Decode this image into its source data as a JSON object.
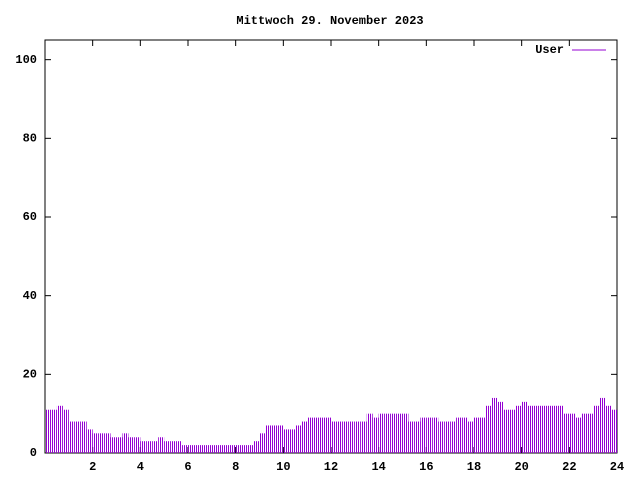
{
  "chart_data": {
    "type": "impulses",
    "title": "Mittwoch 29. November 2023",
    "x": [
      0,
      0.25,
      0.5,
      0.75,
      1,
      1.25,
      1.5,
      1.75,
      2,
      2.25,
      2.5,
      2.75,
      3,
      3.25,
      3.5,
      3.75,
      4,
      4.25,
      4.5,
      4.75,
      5,
      5.25,
      5.5,
      5.75,
      6,
      6.25,
      6.5,
      6.75,
      7,
      7.25,
      7.5,
      7.75,
      8,
      8.25,
      8.5,
      8.75,
      9,
      9.25,
      9.5,
      9.75,
      10,
      10.25,
      10.5,
      10.75,
      11,
      11.25,
      11.5,
      11.75,
      12,
      12.25,
      12.5,
      12.75,
      13,
      13.25,
      13.5,
      13.75,
      14,
      14.25,
      14.5,
      14.75,
      15,
      15.25,
      15.5,
      15.75,
      16,
      16.25,
      16.5,
      16.75,
      17,
      17.25,
      17.5,
      17.75,
      18,
      18.25,
      18.5,
      18.75,
      19,
      19.25,
      19.5,
      19.75,
      20,
      20.25,
      20.5,
      20.75,
      21,
      21.25,
      21.5,
      21.75,
      22,
      22.25,
      22.5,
      22.75,
      23,
      23.25,
      23.5,
      23.75
    ],
    "series": [
      {
        "name": "User",
        "color": "#9400d3",
        "values": [
          11,
          11,
          12,
          11,
          8,
          8,
          8,
          6,
          5,
          5,
          5,
          4,
          4,
          5,
          4,
          4,
          3,
          3,
          3,
          4,
          3,
          3,
          3,
          2,
          2,
          2,
          2,
          2,
          2,
          2,
          2,
          2,
          2,
          2,
          2,
          3,
          5,
          7,
          7,
          7,
          6,
          6,
          7,
          8,
          9,
          9,
          9,
          9,
          8,
          8,
          8,
          8,
          8,
          8,
          10,
          9,
          10,
          10,
          10,
          10,
          10,
          8,
          8,
          9,
          9,
          9,
          8,
          8,
          8,
          9,
          9,
          8,
          9,
          9,
          12,
          14,
          13,
          11,
          11,
          12,
          13,
          12,
          12,
          12,
          12,
          12,
          12,
          10,
          10,
          9,
          10,
          10,
          12,
          14,
          12,
          11
        ]
      }
    ],
    "xlim": [
      0,
      24
    ],
    "xticks": [
      2,
      4,
      6,
      8,
      10,
      12,
      14,
      16,
      18,
      20,
      22,
      24
    ],
    "ylim": [
      0,
      105
    ],
    "yticks": [
      0,
      20,
      40,
      60,
      80,
      100
    ],
    "legend": "upper right"
  }
}
